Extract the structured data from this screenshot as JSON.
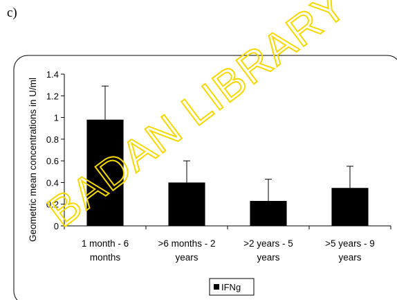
{
  "panel_label": "c)",
  "watermark": {
    "text": "BADAN LIBRARY",
    "color": "#f5d800"
  },
  "chart_data": {
    "type": "bar",
    "categories": [
      [
        "1 month - 6",
        "months"
      ],
      [
        ">6 months - 2",
        "years"
      ],
      [
        ">2 years - 5",
        "years"
      ],
      [
        ">5 years - 9",
        "years"
      ]
    ],
    "series": [
      {
        "name": "IFNg",
        "values": [
          0.98,
          0.4,
          0.23,
          0.35
        ],
        "error_upper": [
          1.29,
          0.6,
          0.43,
          0.55
        ],
        "color": "#000000"
      }
    ],
    "ylabel": "Geometric mean concentrations in U/ml",
    "ylim": [
      0,
      1.4
    ],
    "yticks": [
      0,
      0.2,
      0.4,
      0.6,
      0.8,
      1,
      1.2,
      1.4
    ],
    "ytick_labels": [
      "0",
      "0.2",
      "0.4",
      "0.6",
      "0.8",
      "1",
      "1.2",
      "1.4"
    ],
    "legend_position": "bottom-center",
    "grid": false
  }
}
